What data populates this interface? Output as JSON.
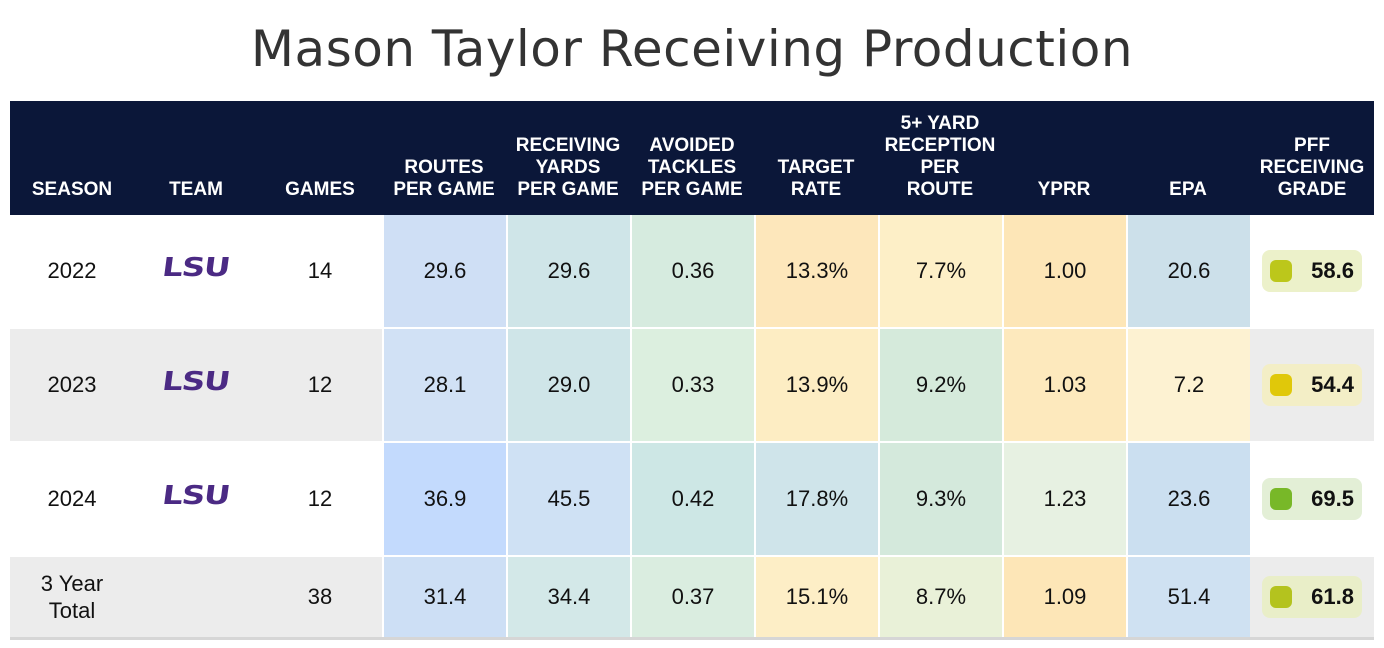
{
  "title": "Mason Taylor Receiving Production",
  "headers": [
    "SEASON",
    "TEAM",
    "GAMES",
    "ROUTES\nPER GAME",
    "RECEIVING\nYARDS\nPER GAME",
    "AVOIDED\nTACKLES\nPER GAME",
    "TARGET\nRATE",
    "5+ YARD\nRECEPTION\nPER\nROUTE",
    "YPRR",
    "EPA",
    "PFF\nRECEIVING\nGRADE"
  ],
  "rows": [
    {
      "season": "2022",
      "team": "LSU",
      "games": "14",
      "cells": [
        "29.6",
        "29.6",
        "0.36",
        "13.3%",
        "7.7%",
        "1.00",
        "20.6"
      ],
      "cell_colors": [
        "#cfdff5",
        "#cfe5e8",
        "#d6ebdf",
        "#fde7bb",
        "#fdefc7",
        "#fde6b7",
        "#cce0ea"
      ],
      "grade": "58.6",
      "grade_color": "#bcc71b",
      "grade_bg": "#ecf1ca"
    },
    {
      "season": "2023",
      "team": "LSU",
      "games": "12",
      "cells": [
        "28.1",
        "29.0",
        "0.33",
        "13.9%",
        "9.2%",
        "1.03",
        "7.2"
      ],
      "cell_colors": [
        "#d1e1f5",
        "#cfe5e8",
        "#dcefdf",
        "#fdedc3",
        "#d5eadb",
        "#fde9bd",
        "#fdf2d2"
      ],
      "grade": "54.4",
      "grade_color": "#e0c80a",
      "grade_bg": "#f3eec6"
    },
    {
      "season": "2024",
      "team": "LSU",
      "games": "12",
      "cells": [
        "36.9",
        "45.5",
        "0.42",
        "17.8%",
        "9.3%",
        "1.23",
        "23.6"
      ],
      "cell_colors": [
        "#c3dafd",
        "#cfe1f4",
        "#cde7e5",
        "#cfe4ea",
        "#d4e9dc",
        "#e7f1e2",
        "#cbdff0"
      ],
      "grade": "69.5",
      "grade_color": "#78b828",
      "grade_bg": "#e3efd6"
    },
    {
      "season": "3 Year\nTotal",
      "team": "",
      "games": "38",
      "cells": [
        "31.4",
        "34.4",
        "0.37",
        "15.1%",
        "8.7%",
        "1.09",
        "51.4"
      ],
      "cell_colors": [
        "#cddff5",
        "#d3e8e8",
        "#daede0",
        "#fdeec6",
        "#e9f1d8",
        "#fde6b7",
        "#cfe1f2"
      ],
      "grade": "61.8",
      "grade_color": "#b4c31e",
      "grade_bg": "#e9eec8"
    }
  ]
}
